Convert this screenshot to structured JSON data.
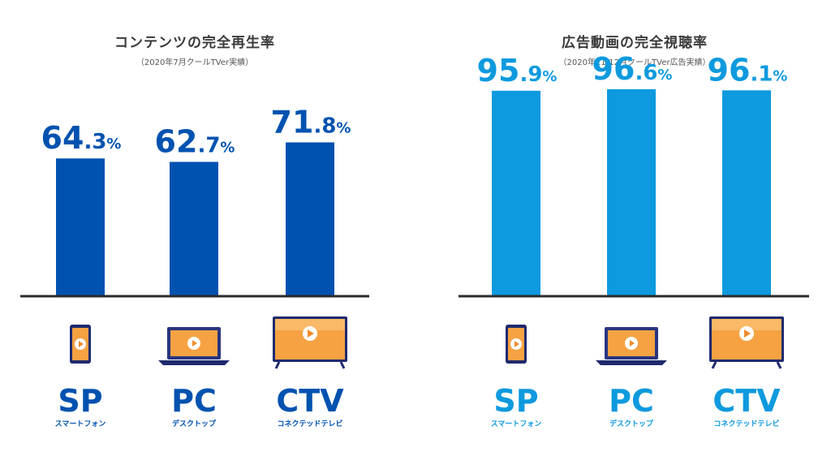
{
  "chart_data": [
    {
      "type": "bar",
      "title": "コンテンツの完全再生率",
      "subtitle": "（2020年7月クールTVer実績）",
      "color": "#0052b0",
      "categories": [
        {
          "code": "SP",
          "label": "スマートフォン",
          "icon": "smartphone-icon"
        },
        {
          "code": "PC",
          "label": "デスクトップ",
          "icon": "laptop-icon"
        },
        {
          "code": "CTV",
          "label": "コネクテッドテレビ",
          "icon": "tv-icon"
        }
      ],
      "values": [
        64.3,
        62.7,
        71.8
      ],
      "value_labels": [
        {
          "int": "64",
          "dec": ".3",
          "pct": "%"
        },
        {
          "int": "62",
          "dec": ".7",
          "pct": "%"
        },
        {
          "int": "71",
          "dec": ".8",
          "pct": "%"
        }
      ],
      "ylim": [
        0,
        100
      ]
    },
    {
      "type": "bar",
      "title": "広告動画の完全視聴率",
      "subtitle": "（2020年11-12月クールTVer広告実績）",
      "color": "#0e9ade",
      "categories": [
        {
          "code": "SP",
          "label": "スマートフォン",
          "icon": "smartphone-icon"
        },
        {
          "code": "PC",
          "label": "デスクトップ",
          "icon": "laptop-icon"
        },
        {
          "code": "CTV",
          "label": "コネクテッドテレビ",
          "icon": "tv-icon"
        }
      ],
      "values": [
        95.9,
        96.6,
        96.1
      ],
      "value_labels": [
        {
          "int": "95",
          "dec": ".9",
          "pct": "%"
        },
        {
          "int": "96",
          "dec": ".6",
          "pct": "%"
        },
        {
          "int": "96",
          "dec": ".1",
          "pct": "%"
        }
      ],
      "ylim": [
        0,
        100
      ]
    }
  ]
}
